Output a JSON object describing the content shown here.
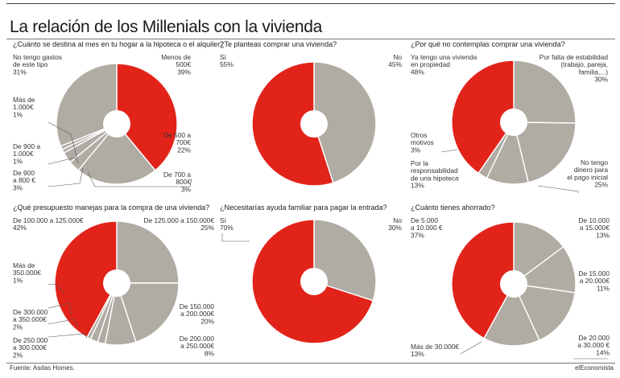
{
  "title": "La relación de los Millenials con la vivienda",
  "source": "Fuente: Asdas Homes.",
  "brand": "elEconomista",
  "colors": {
    "red": "#e2231a",
    "gray": "#b0aba3",
    "hole": "#ffffff"
  },
  "chart_data": [
    {
      "type": "pie",
      "title": "¿Cuánto se destina al mes en tu hogar a la hipoteca o el alquiler?",
      "slices": [
        {
          "label": [
            "Menos de",
            "500€"
          ],
          "value": 39,
          "display": "39%",
          "color": "red"
        },
        {
          "label": [
            "De 500 a",
            "700€"
          ],
          "value": 22,
          "display": "22%",
          "color": "gray"
        },
        {
          "label": [
            "De 700 a",
            "800€"
          ],
          "value": 3,
          "display": "3%",
          "color": "gray"
        },
        {
          "label": [
            "De 900",
            "a 800 €"
          ],
          "value": 3,
          "display": "3%",
          "color": "gray"
        },
        {
          "label": [
            "De 900 a",
            "1.000€"
          ],
          "value": 1,
          "display": "1%",
          "color": "gray"
        },
        {
          "label": [
            "Más de",
            "1.000€"
          ],
          "value": 1,
          "display": "1%",
          "color": "gray"
        },
        {
          "label": [
            "No tengo gastos",
            "de este tipo"
          ],
          "value": 31,
          "display": "31%",
          "color": "gray"
        }
      ]
    },
    {
      "type": "pie",
      "title": "¿Te planteas comprar una vivienda?",
      "slices": [
        {
          "label": [
            "No"
          ],
          "value": 45,
          "display": "45%",
          "color": "gray"
        },
        {
          "label": [
            "Sí"
          ],
          "value": 55,
          "display": "55%",
          "color": "red"
        }
      ]
    },
    {
      "type": "pie",
      "title": "¿Por qué no contemplas comprar una vivienda?",
      "slices": [
        {
          "label": [
            "Por falta de estabilidad",
            "(trabajo, pareja,",
            "familia,...)"
          ],
          "value": 30,
          "display": "30%",
          "color": "gray"
        },
        {
          "label": [
            "No tengo",
            "dinero para",
            "el pago inicial"
          ],
          "value": 25,
          "display": "25%",
          "color": "gray"
        },
        {
          "label": [
            "Por la",
            "responsabilidad",
            "de una hipoteca"
          ],
          "value": 13,
          "display": "13%",
          "color": "gray"
        },
        {
          "label": [
            "Otros",
            "motivos"
          ],
          "value": 3,
          "display": "3%",
          "color": "gray"
        },
        {
          "label": [
            "Ya tengo una vivienda",
            "en propiedad"
          ],
          "value": 48,
          "display": "48%",
          "color": "red"
        }
      ]
    },
    {
      "type": "pie",
      "title": "¿Qué presupuesto manejas para la compra de una vivienda?",
      "slices": [
        {
          "label": [
            "De 125.000 a 150.000€"
          ],
          "value": 25,
          "display": "25%",
          "color": "gray"
        },
        {
          "label": [
            "De 150.000",
            "a 200.000€"
          ],
          "value": 20,
          "display": "20%",
          "color": "gray"
        },
        {
          "label": [
            "De 200.000",
            "a 250.000€"
          ],
          "value": 8,
          "display": "8%",
          "color": "gray"
        },
        {
          "label": [
            "De 250.000",
            "a 300.000€"
          ],
          "value": 2,
          "display": "2%",
          "color": "gray"
        },
        {
          "label": [
            "De 300.000",
            "a 350.000€"
          ],
          "value": 2,
          "display": "2%",
          "color": "gray"
        },
        {
          "label": [
            "Más de",
            "350.000€"
          ],
          "value": 1,
          "display": "1%",
          "color": "gray"
        },
        {
          "label": [
            "De 100.000 a 125.000€"
          ],
          "value": 42,
          "display": "42%",
          "color": "red"
        }
      ]
    },
    {
      "type": "pie",
      "title": "¿Necesitarías ayuda familiar para pagar la entrada?",
      "slices": [
        {
          "label": [
            "No"
          ],
          "value": 30,
          "display": "30%",
          "color": "gray"
        },
        {
          "label": [
            "Sí"
          ],
          "value": 70,
          "display": "70%",
          "color": "red"
        }
      ]
    },
    {
      "type": "pie",
      "title": "¿Cuánto tienes ahorrado?",
      "slices": [
        {
          "label": [
            "De 10.000",
            "a 15.000€"
          ],
          "value": 13,
          "display": "13%",
          "color": "gray"
        },
        {
          "label": [
            "De 15.000",
            "a 20.000€"
          ],
          "value": 11,
          "display": "11%",
          "color": "gray"
        },
        {
          "label": [
            "De 20.000",
            "a 30.000 €"
          ],
          "value": 14,
          "display": "14%",
          "color": "gray"
        },
        {
          "label": [
            "Más de 30.000€"
          ],
          "value": 13,
          "display": "13%",
          "color": "gray"
        },
        {
          "label": [
            "De 5.000",
            "a 10.000 €"
          ],
          "value": 37,
          "display": "37%",
          "color": "red"
        }
      ]
    }
  ]
}
